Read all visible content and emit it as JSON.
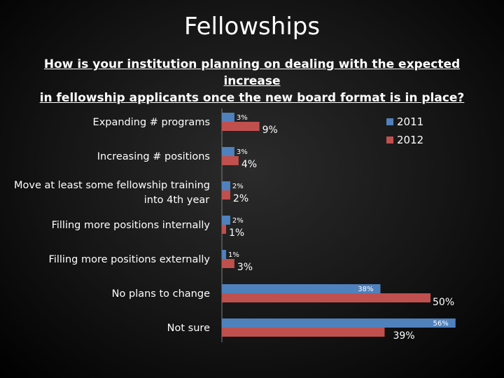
{
  "slide": {
    "title": "Fellowships",
    "question_line1": "How is your institution planning on dealing with the expected increase",
    "question_line2": "in fellowship applicants once the new board format is in place?"
  },
  "colors": {
    "series_2011": "#4f81bd",
    "series_2012": "#c0504d",
    "text": "#ffffff",
    "axis": "#7f7f7f"
  },
  "chart_data": {
    "type": "bar",
    "orientation": "horizontal",
    "categories": [
      "Expanding # programs",
      "Increasing # positions",
      "Move at least some fellowship training into 4th year",
      "Filling more positions internally",
      "Filling more positions externally",
      "No plans to change",
      "Not sure"
    ],
    "category_lines": [
      [
        "Expanding # programs"
      ],
      [
        "Increasing # positions"
      ],
      [
        "Move at least some fellowship training",
        "into 4th year"
      ],
      [
        "Filling more positions internally"
      ],
      [
        "Filling more positions externally"
      ],
      [
        "No plans to change"
      ],
      [
        "Not sure"
      ]
    ],
    "series": [
      {
        "name": "2011",
        "values": [
          3,
          3,
          2,
          2,
          1,
          38,
          56
        ],
        "labels": [
          "3%",
          "3%",
          "2%",
          "2%",
          "1%",
          "38%",
          "56%"
        ]
      },
      {
        "name": "2012",
        "values": [
          9,
          4,
          2,
          1,
          3,
          50,
          39
        ],
        "labels": [
          "9%",
          "4%",
          "2%",
          "1%",
          "3%",
          "50%",
          "39%"
        ]
      }
    ],
    "xlim": [
      0,
      60
    ],
    "legend_position": "top-right",
    "grid": false
  }
}
